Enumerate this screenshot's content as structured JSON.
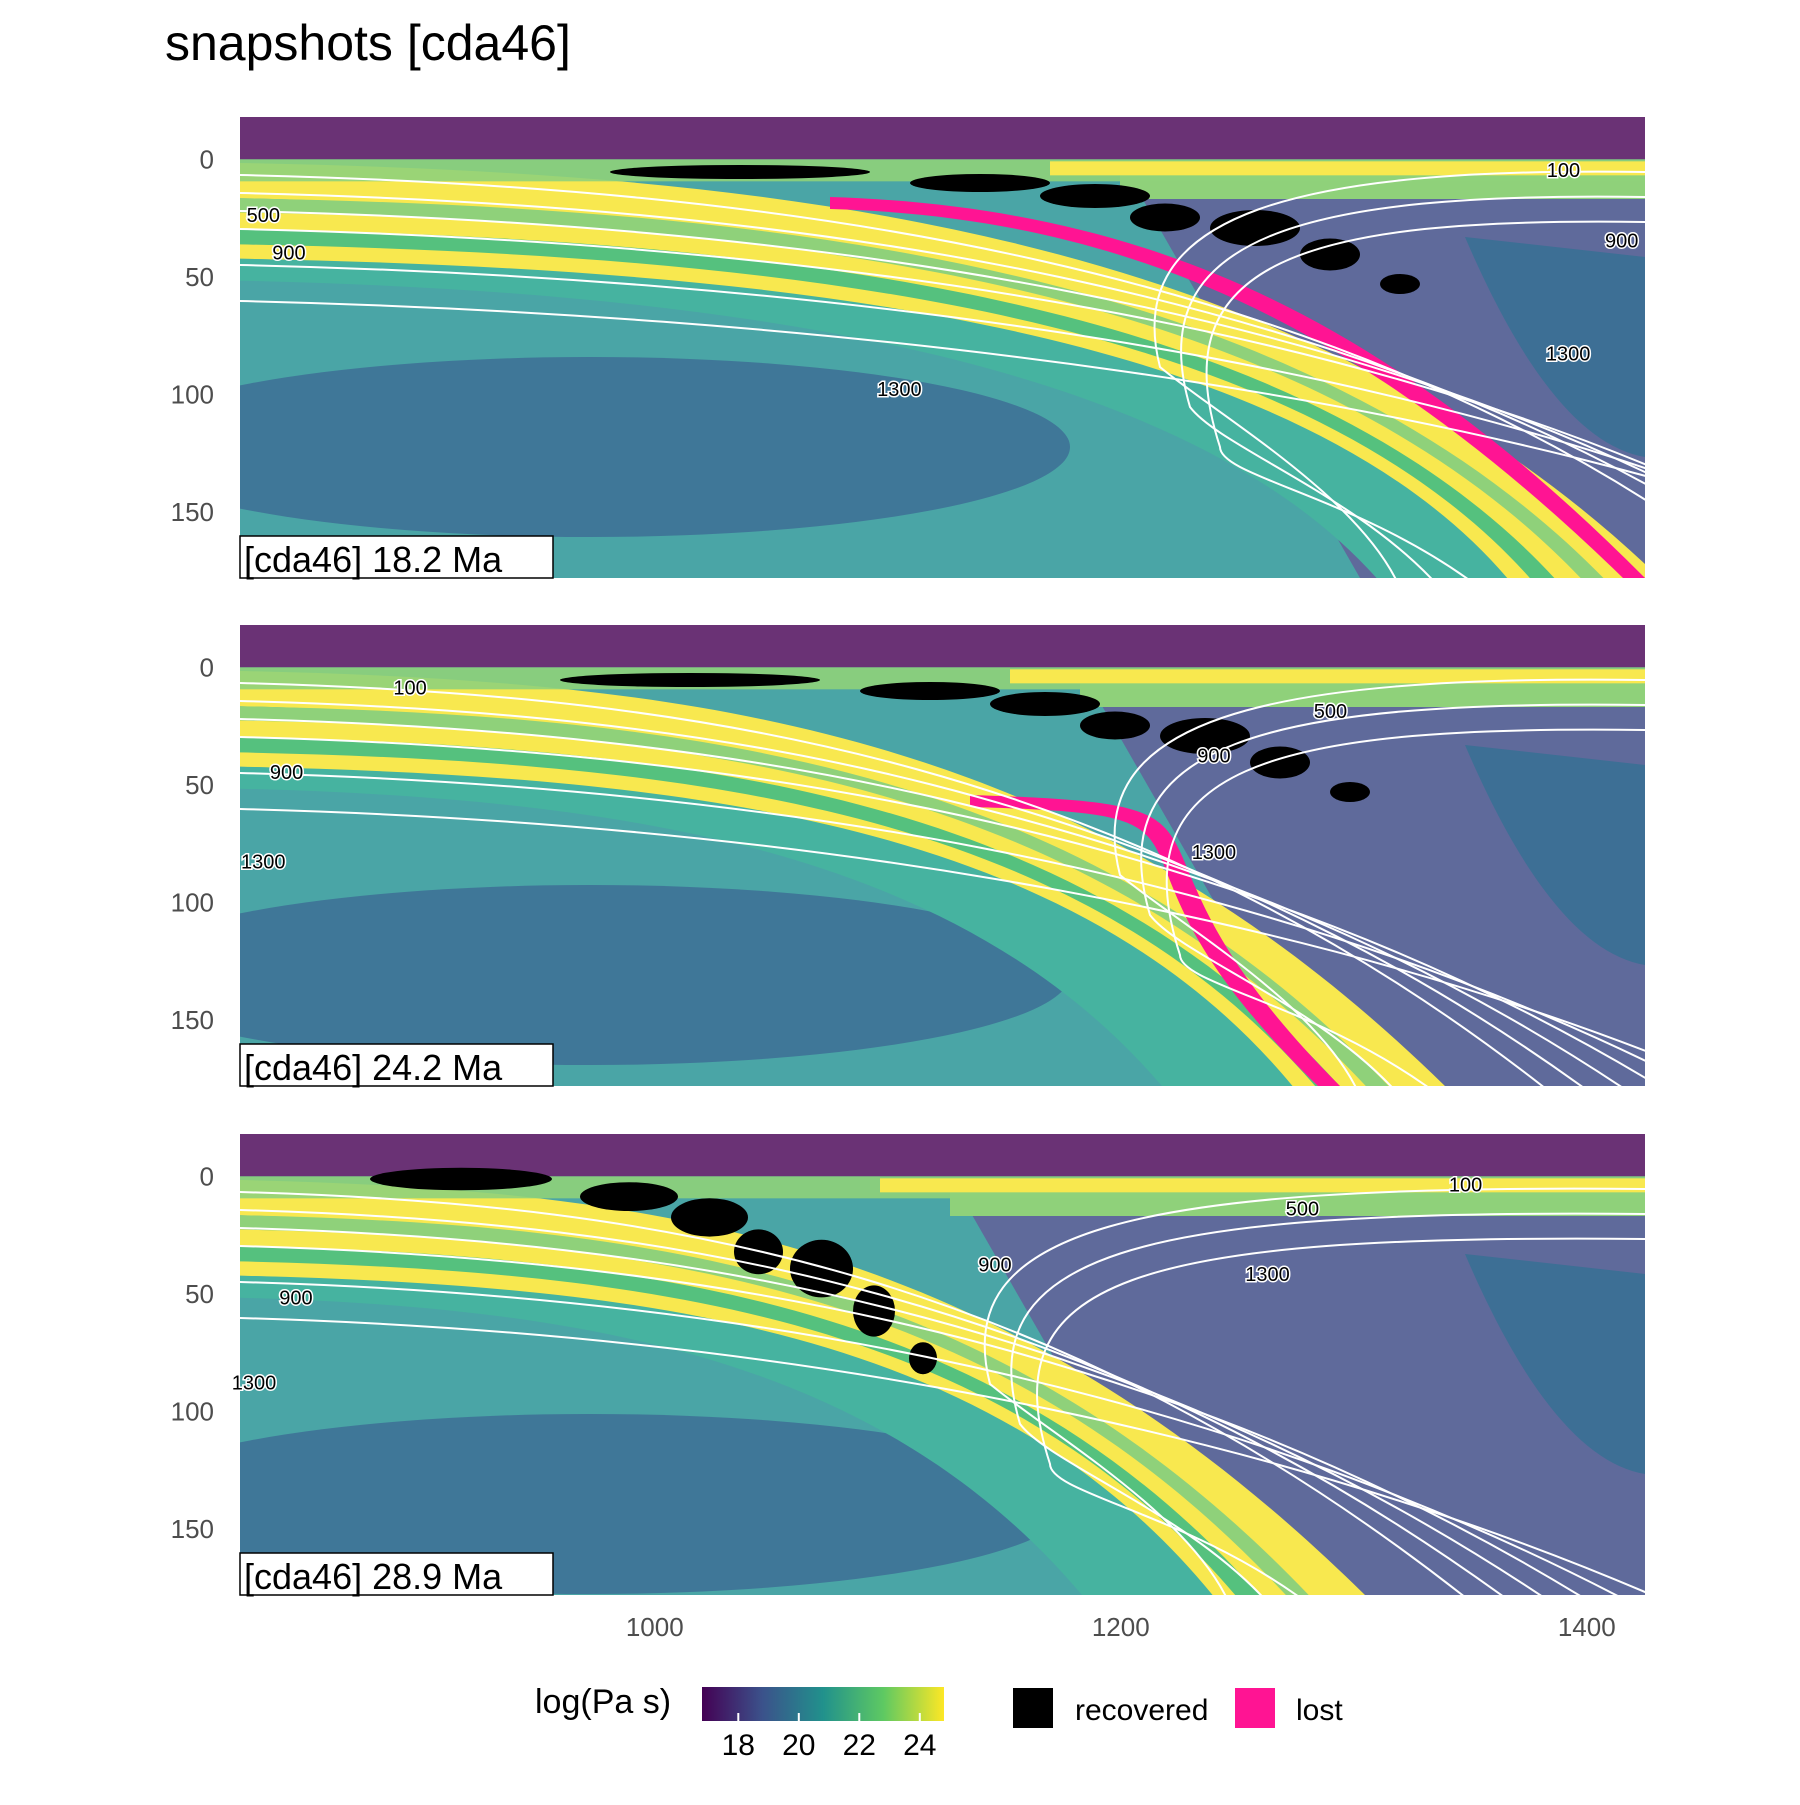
{
  "title": "snapshots [cda46]",
  "chart_data": {
    "type": "heatmap",
    "title": "snapshots [cda46]",
    "x_range": [
      822,
      1425
    ],
    "y_range": [
      -18,
      178
    ],
    "y_reversed": true,
    "x_ticks": [
      1000,
      1200,
      1400
    ],
    "y_ticks": [
      0,
      50,
      100,
      150
    ],
    "colorbar": {
      "title": "log(Pa s)",
      "range": [
        16.8,
        24.8
      ],
      "ticks": [
        18,
        20,
        22,
        24
      ],
      "colors": [
        "#440154",
        "#3b528b",
        "#21918c",
        "#5ec962",
        "#fde725"
      ]
    },
    "legend": {
      "position": "bottom",
      "entries": [
        {
          "label": "recovered",
          "color": "#000000"
        },
        {
          "label": "lost",
          "color": "#ff1493"
        }
      ]
    },
    "panels": [
      {
        "stamp": "[cda46] 18.2 Ma",
        "time_ma": 18.2,
        "contour_labels": [
          {
            "text": "100",
            "x": 1390,
            "y": 5
          },
          {
            "text": "500",
            "x": 832,
            "y": 24
          },
          {
            "text": "900",
            "x": 843,
            "y": 40
          },
          {
            "text": "900",
            "x": 1415,
            "y": 35
          },
          {
            "text": "1300",
            "x": 1105,
            "y": 98
          },
          {
            "text": "1300",
            "x": 1392,
            "y": 83
          }
        ]
      },
      {
        "stamp": "[cda46] 24.2 Ma",
        "time_ma": 24.2,
        "contour_labels": [
          {
            "text": "100",
            "x": 895,
            "y": 9
          },
          {
            "text": "500",
            "x": 1290,
            "y": 19
          },
          {
            "text": "900",
            "x": 842,
            "y": 45
          },
          {
            "text": "900",
            "x": 1240,
            "y": 38
          },
          {
            "text": "1300",
            "x": 832,
            "y": 83
          },
          {
            "text": "1300",
            "x": 1240,
            "y": 79
          }
        ]
      },
      {
        "stamp": "[cda46] 28.9 Ma",
        "time_ma": 28.9,
        "contour_labels": [
          {
            "text": "100",
            "x": 1348,
            "y": 4
          },
          {
            "text": "500",
            "x": 1278,
            "y": 14
          },
          {
            "text": "900",
            "x": 1146,
            "y": 38
          },
          {
            "text": "900",
            "x": 846,
            "y": 52
          },
          {
            "text": "1300",
            "x": 1263,
            "y": 42
          },
          {
            "text": "1300",
            "x": 828,
            "y": 88
          }
        ]
      }
    ]
  }
}
